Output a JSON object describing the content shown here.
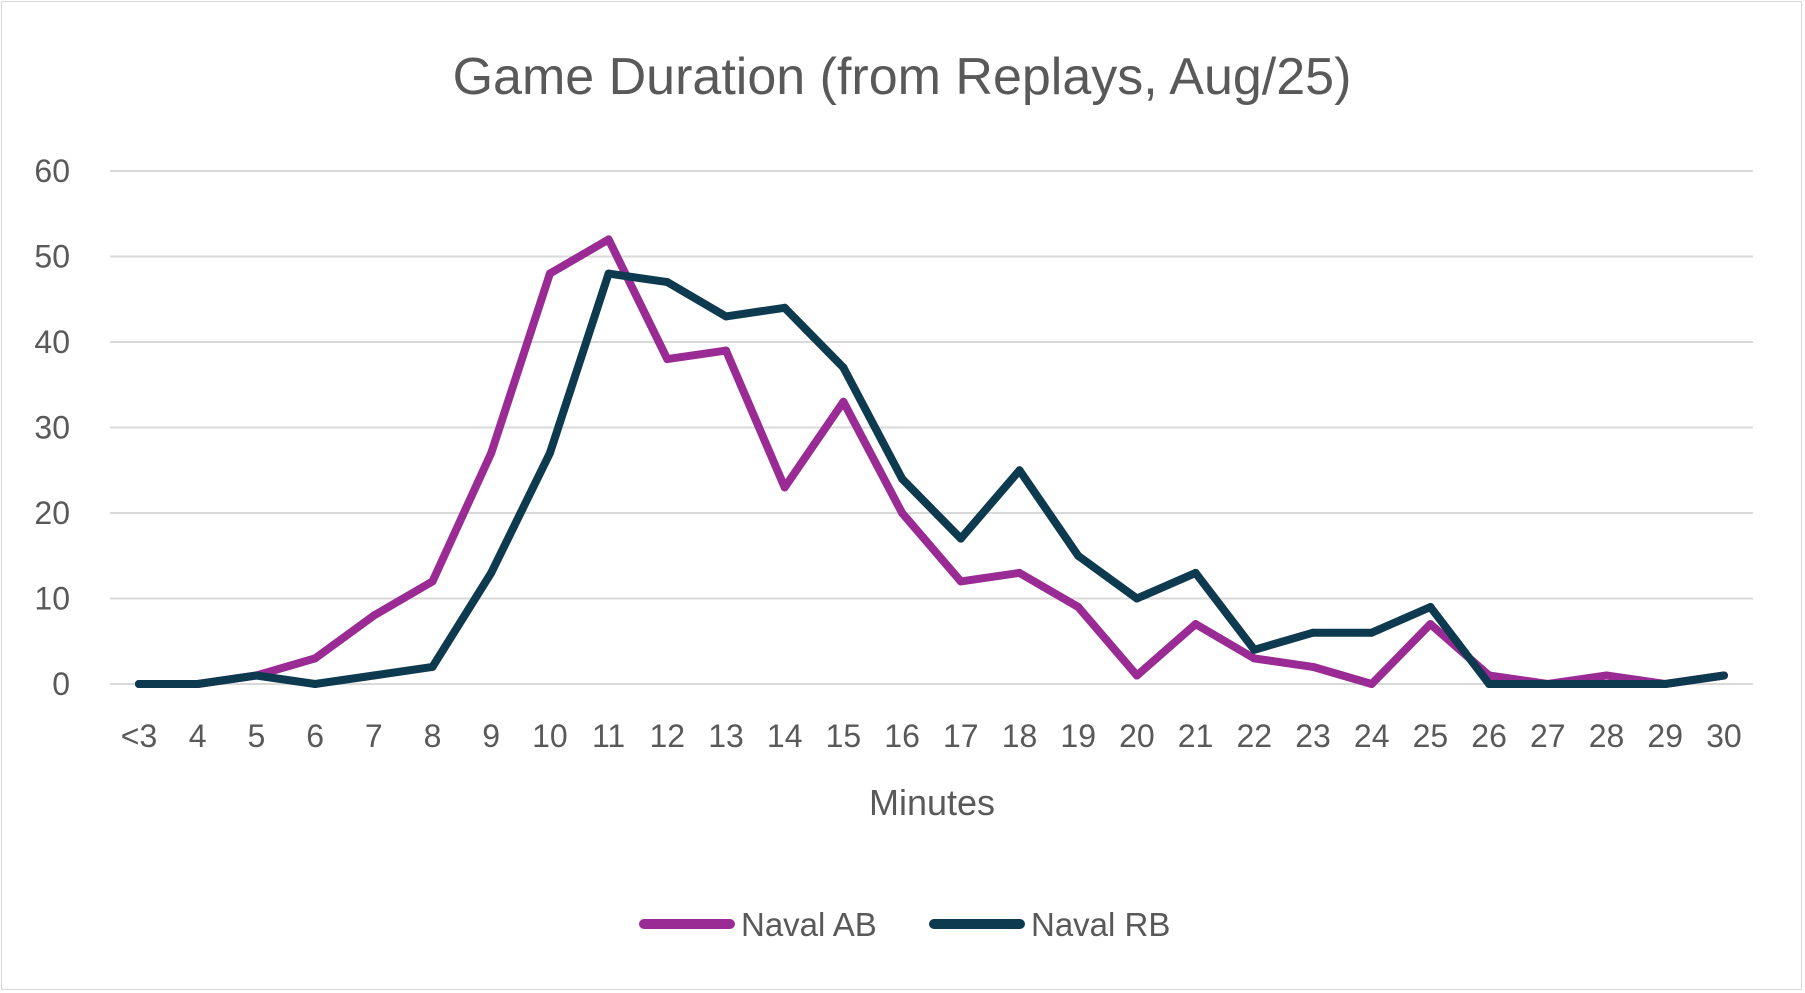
{
  "chart_data": {
    "type": "line",
    "title": "Game Duration (from Replays, Aug/25)",
    "xlabel": "Minutes",
    "ylabel": "",
    "ylim": [
      0,
      60
    ],
    "yticks": [
      "0",
      "10",
      "20",
      "30",
      "40",
      "50",
      "60"
    ],
    "grid": "horizontal",
    "legend_position": "bottom",
    "categories": [
      "<3",
      "4",
      "5",
      "6",
      "7",
      "8",
      "9",
      "10",
      "11",
      "12",
      "13",
      "14",
      "15",
      "16",
      "17",
      "18",
      "19",
      "20",
      "21",
      "22",
      "23",
      "24",
      "25",
      "26",
      "27",
      "28",
      "29",
      "30"
    ],
    "series": [
      {
        "name": "Naval AB",
        "color": "#9a2b94",
        "values": [
          0,
          0,
          1,
          3,
          8,
          12,
          27,
          48,
          52,
          38,
          39,
          23,
          33,
          20,
          12,
          13,
          9,
          1,
          7,
          3,
          2,
          0,
          7,
          1,
          0,
          1,
          0,
          1
        ]
      },
      {
        "name": "Naval RB",
        "color": "#0e3a4f",
        "values": [
          0,
          0,
          1,
          0,
          1,
          2,
          13,
          27,
          48,
          47,
          43,
          44,
          37,
          24,
          17,
          25,
          15,
          10,
          13,
          4,
          6,
          6,
          9,
          0,
          0,
          0,
          0,
          1
        ]
      }
    ]
  }
}
